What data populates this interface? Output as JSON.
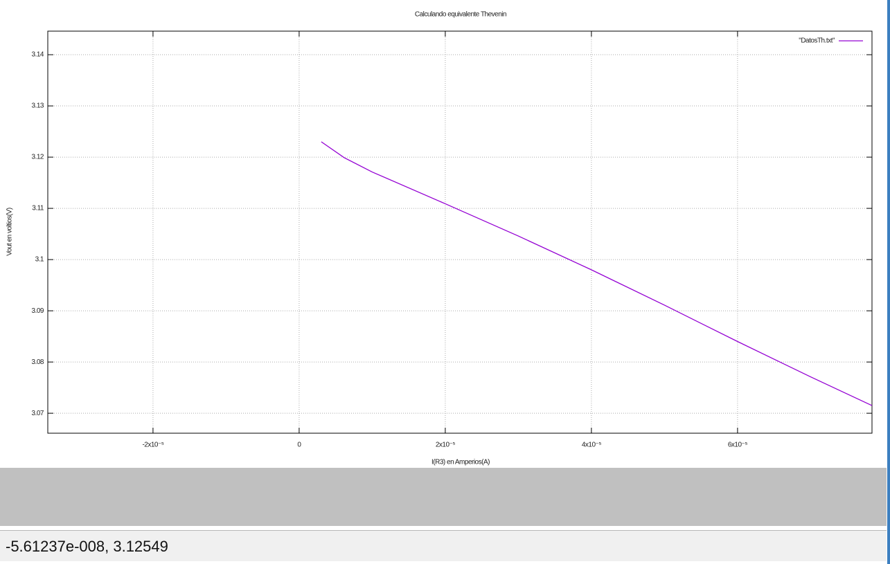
{
  "chart_data": {
    "type": "line",
    "title": "Calculando equivalente Thevenin",
    "x_label": "I(R3) en Amperios(A)",
    "y_label": "Vout en voltios(V)",
    "x": [
      3.03e-06,
      6.16e-06,
      1e-05,
      2e-05,
      3e-05,
      4e-05,
      5e-05,
      6e-05,
      7e-05,
      7.84e-05
    ],
    "series": [
      {
        "name": "\"DatosTh.txt\"",
        "color": "#9400d3",
        "values": [
          3.123,
          3.1199,
          3.1171,
          3.1109,
          3.1046,
          3.098,
          3.0911,
          3.084,
          3.0771,
          3.0715
        ]
      }
    ],
    "xlim": [
      -3.44e-05,
      7.84e-05
    ],
    "ylim": [
      3.0661,
      3.1446
    ],
    "xticks": [
      {
        "value": -2e-05,
        "label": "-2x10⁻⁵"
      },
      0,
      {
        "value": 2e-05,
        "label": "2x10⁻⁵"
      },
      {
        "value": 4e-05,
        "label": "4x10⁻⁵"
      },
      {
        "value": 6e-05,
        "label": "6x10⁻⁵"
      }
    ],
    "yticks": [
      3.07,
      3.08,
      3.09,
      3.1,
      3.11,
      3.12,
      3.13,
      3.14
    ],
    "grid": true,
    "legend_position": "top-right"
  },
  "status_bar": {
    "coordinates": "-5.61237e-008,  3.12549"
  }
}
